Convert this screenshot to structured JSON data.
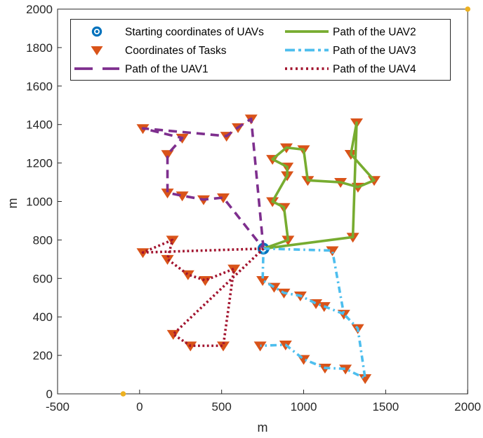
{
  "colors": {
    "start": "#0072BD",
    "task": "#D95319",
    "uav1": "#7E2F8E",
    "uav2": "#77AC30",
    "uav3": "#4DBEEE",
    "uav4": "#A2142F",
    "extra": "#EDB120",
    "axis": "#262626"
  },
  "legend": {
    "entries": [
      {
        "id": "start",
        "label": "Starting coordinates of UAVs",
        "swatch": "circle",
        "color": "start"
      },
      {
        "id": "tasks",
        "label": "Coordinates of Tasks",
        "swatch": "triangle",
        "color": "task"
      },
      {
        "id": "uav1",
        "label": "Path of the UAV1",
        "swatch": "dashed",
        "color": "uav1"
      },
      {
        "id": "uav2",
        "label": "Path of the UAV2",
        "swatch": "solid",
        "color": "uav2"
      },
      {
        "id": "uav3",
        "label": "Path of the UAV3",
        "swatch": "dashdot",
        "color": "uav3"
      },
      {
        "id": "uav4",
        "label": "Path of the UAV4",
        "swatch": "dotted",
        "color": "uav4"
      }
    ]
  },
  "chart_data": {
    "type": "scatter",
    "title": "",
    "xlabel": "m",
    "ylabel": "m",
    "xlim": [
      -500,
      2000
    ],
    "ylim": [
      0,
      2000
    ],
    "xticks": [
      -500,
      0,
      500,
      1000,
      1500,
      2000
    ],
    "yticks": [
      0,
      200,
      400,
      600,
      800,
      1000,
      1200,
      1400,
      1600,
      1800,
      2000
    ],
    "grid": false,
    "legend_position": "top-left-inside",
    "start_point": {
      "label": "Starting coordinates of UAVs",
      "xy": [
        755,
        755
      ]
    },
    "tasks": {
      "label": "Coordinates of Tasks",
      "points": [
        [
          20,
          1380
        ],
        [
          260,
          1330
        ],
        [
          530,
          1340
        ],
        [
          600,
          1385
        ],
        [
          680,
          1430
        ],
        [
          170,
          1245
        ],
        [
          170,
          1045
        ],
        [
          260,
          1030
        ],
        [
          390,
          1010
        ],
        [
          510,
          1020
        ],
        [
          905,
          800
        ],
        [
          1300,
          815
        ],
        [
          880,
          970
        ],
        [
          810,
          1000
        ],
        [
          900,
          1135
        ],
        [
          900,
          1180
        ],
        [
          810,
          1220
        ],
        [
          895,
          1280
        ],
        [
          1000,
          1270
        ],
        [
          1025,
          1110
        ],
        [
          1225,
          1100
        ],
        [
          1331,
          1075
        ],
        [
          1430,
          1110
        ],
        [
          1288,
          1246
        ],
        [
          1323,
          1410
        ],
        [
          1175,
          745
        ],
        [
          1245,
          415
        ],
        [
          1330,
          340
        ],
        [
          1375,
          80
        ],
        [
          1255,
          130
        ],
        [
          1130,
          135
        ],
        [
          1000,
          180
        ],
        [
          890,
          255
        ],
        [
          735,
          250
        ],
        [
          750,
          590
        ],
        [
          820,
          555
        ],
        [
          880,
          525
        ],
        [
          980,
          510
        ],
        [
          1075,
          470
        ],
        [
          1125,
          455
        ],
        [
          205,
          310
        ],
        [
          310,
          250
        ],
        [
          510,
          250
        ],
        [
          575,
          650
        ],
        [
          400,
          590
        ],
        [
          295,
          620
        ],
        [
          170,
          700
        ],
        [
          200,
          800
        ],
        [
          20,
          735
        ]
      ]
    },
    "uav_paths": [
      {
        "name": "Path of the UAV1",
        "style": "dashed",
        "color_key": "uav1",
        "segments": [
          [
            [
              755,
              755
            ],
            [
              680,
              1430
            ],
            [
              600,
              1385
            ],
            [
              530,
              1340
            ],
            [
              20,
              1380
            ],
            [
              260,
              1330
            ],
            [
              170,
              1245
            ],
            [
              170,
              1045
            ],
            [
              260,
              1030
            ],
            [
              390,
              1010
            ],
            [
              510,
              1020
            ],
            [
              755,
              755
            ]
          ]
        ]
      },
      {
        "name": "Path of the UAV2",
        "style": "solid",
        "color_key": "uav2",
        "segments": [
          [
            [
              755,
              755
            ],
            [
              905,
              800
            ],
            [
              880,
              970
            ],
            [
              810,
              1000
            ],
            [
              900,
              1135
            ],
            [
              900,
              1180
            ],
            [
              810,
              1220
            ],
            [
              895,
              1280
            ],
            [
              1000,
              1270
            ],
            [
              1025,
              1110
            ],
            [
              1225,
              1100
            ],
            [
              1331,
              1075
            ],
            [
              1430,
              1110
            ],
            [
              1288,
              1246
            ],
            [
              1323,
              1410
            ],
            [
              1300,
              815
            ],
            [
              755,
              755
            ]
          ]
        ]
      },
      {
        "name": "Path of the UAV3",
        "style": "dashdot",
        "color_key": "uav3",
        "segments": [
          [
            [
              755,
              755
            ],
            [
              1175,
              745
            ],
            [
              1245,
              415
            ],
            [
              1330,
              340
            ],
            [
              1375,
              80
            ],
            [
              1255,
              130
            ],
            [
              1130,
              135
            ],
            [
              1000,
              180
            ],
            [
              890,
              255
            ],
            [
              735,
              250
            ]
          ],
          [
            [
              1245,
              415
            ],
            [
              1125,
              455
            ],
            [
              1075,
              470
            ],
            [
              980,
              510
            ],
            [
              880,
              525
            ],
            [
              820,
              555
            ],
            [
              750,
              590
            ],
            [
              755,
              755
            ]
          ]
        ]
      },
      {
        "name": "Path of the UAV4",
        "style": "dotted",
        "color_key": "uav4",
        "segments": [
          [
            [
              755,
              755
            ],
            [
              205,
              310
            ],
            [
              310,
              250
            ],
            [
              510,
              250
            ],
            [
              575,
              650
            ],
            [
              400,
              590
            ],
            [
              295,
              620
            ],
            [
              170,
              700
            ],
            [
              200,
              800
            ],
            [
              20,
              735
            ],
            [
              755,
              755
            ]
          ]
        ]
      }
    ],
    "extra_points": {
      "color_key": "extra",
      "points": [
        [
          -100,
          0
        ],
        [
          2000,
          2000
        ]
      ]
    }
  }
}
